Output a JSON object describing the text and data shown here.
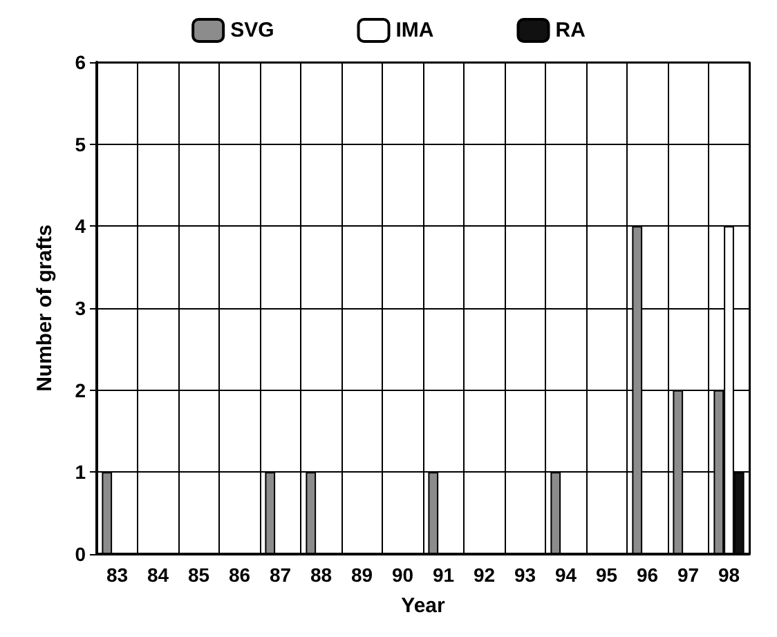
{
  "chart_data": {
    "type": "bar",
    "xlabel": "Year",
    "ylabel": "Number of grafts",
    "categories": [
      "83",
      "84",
      "85",
      "86",
      "87",
      "88",
      "89",
      "90",
      "91",
      "92",
      "93",
      "94",
      "95",
      "96",
      "97",
      "98"
    ],
    "series": [
      {
        "name": "SVG",
        "color": "#8c8c8c",
        "values": [
          1,
          0,
          0,
          0,
          1,
          1,
          0,
          0,
          1,
          0,
          0,
          1,
          0,
          4,
          2,
          2
        ]
      },
      {
        "name": "IMA",
        "color": "#ffffff",
        "values": [
          0,
          0,
          0,
          0,
          0,
          0,
          0,
          0,
          0,
          0,
          0,
          0,
          0,
          0,
          0,
          4
        ]
      },
      {
        "name": "RA",
        "color": "#111111",
        "values": [
          0,
          0,
          0,
          0,
          0,
          0,
          0,
          0,
          0,
          0,
          0,
          0,
          0,
          0,
          0,
          1
        ]
      }
    ],
    "ylim": [
      0,
      6
    ],
    "yticks": [
      0,
      1,
      2,
      3,
      4,
      5,
      6
    ],
    "grid": true,
    "legend": "top"
  }
}
